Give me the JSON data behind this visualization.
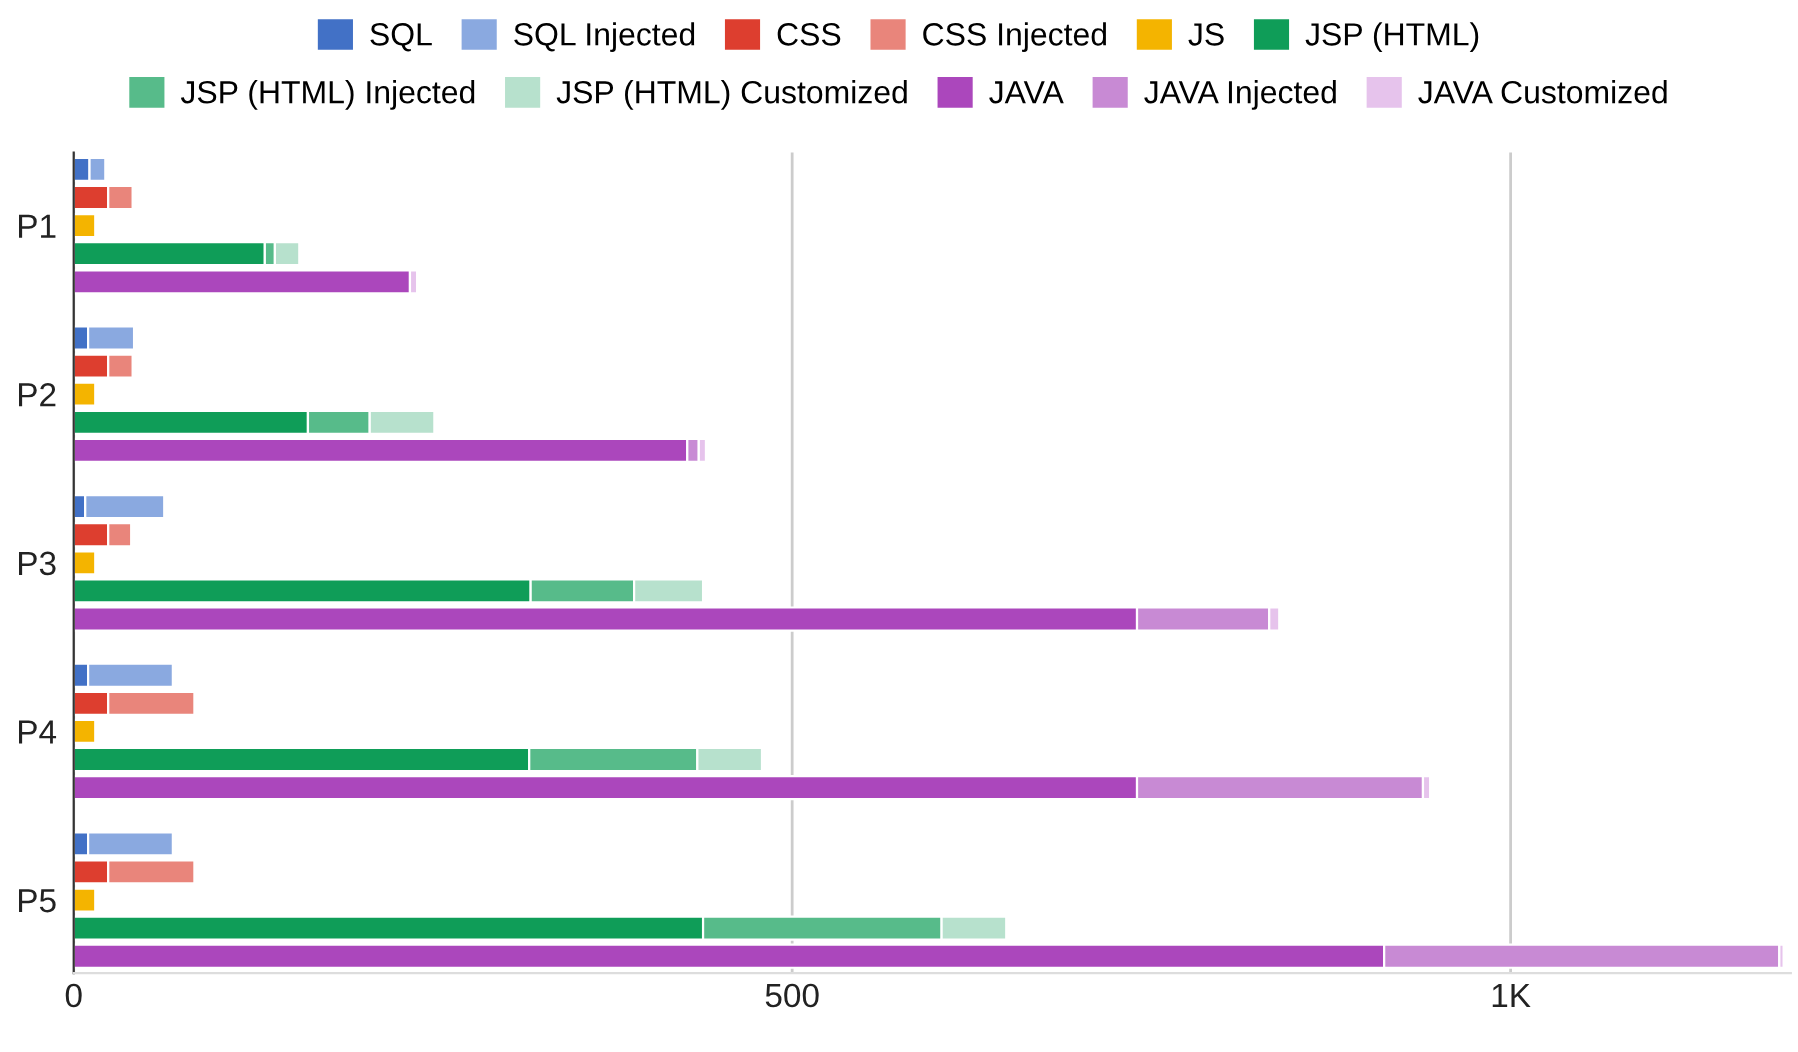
{
  "chart_data": {
    "type": "bar",
    "orientation": "horizontal",
    "stacked": true,
    "categories": [
      null,
      null,
      "P1",
      null,
      null,
      null,
      null,
      null,
      "P2",
      null,
      null,
      null,
      null,
      null,
      "P3",
      null,
      null,
      null,
      null,
      null,
      "P4",
      null,
      null,
      null,
      null,
      null,
      "P5",
      null,
      null
    ],
    "series": [
      {
        "name": "SQL",
        "color": "#4271c6",
        "values": [
          11,
          null,
          null,
          null,
          null,
          null,
          10,
          null,
          null,
          null,
          null,
          null,
          8,
          null,
          null,
          null,
          null,
          null,
          10,
          null,
          null,
          null,
          null,
          null,
          10,
          null,
          null,
          null,
          null
        ]
      },
      {
        "name": "SQL Injected",
        "color": "#8aa9e0",
        "values": [
          11,
          null,
          null,
          null,
          null,
          null,
          32,
          null,
          null,
          null,
          null,
          null,
          55,
          null,
          null,
          null,
          null,
          null,
          59,
          null,
          null,
          null,
          null,
          null,
          59,
          null,
          null,
          null,
          null
        ]
      },
      {
        "name": "CSS",
        "color": "#dd3e2f",
        "values": [
          null,
          24,
          null,
          null,
          null,
          null,
          null,
          24,
          null,
          null,
          null,
          null,
          null,
          24,
          null,
          null,
          null,
          null,
          null,
          24,
          null,
          null,
          null,
          null,
          null,
          24,
          null,
          null,
          null
        ]
      },
      {
        "name": "CSS Injected",
        "color": "#e9857b",
        "values": [
          null,
          17,
          null,
          null,
          null,
          null,
          null,
          17,
          null,
          null,
          null,
          null,
          null,
          16,
          null,
          null,
          null,
          null,
          null,
          60,
          null,
          null,
          null,
          null,
          null,
          60,
          null,
          null,
          null
        ]
      },
      {
        "name": "JS",
        "color": "#f4b400",
        "values": [
          null,
          null,
          15,
          null,
          null,
          null,
          null,
          null,
          15,
          null,
          null,
          null,
          null,
          null,
          15,
          null,
          null,
          null,
          null,
          null,
          15,
          null,
          null,
          null,
          null,
          null,
          15,
          null,
          null
        ]
      },
      {
        "name": "JSP (HTML)",
        "color": "#0f9d58",
        "values": [
          null,
          null,
          null,
          133,
          null,
          null,
          null,
          null,
          null,
          163,
          null,
          null,
          null,
          null,
          null,
          318,
          null,
          null,
          null,
          null,
          null,
          317,
          null,
          null,
          null,
          null,
          null,
          438,
          null
        ]
      },
      {
        "name": "JSP (HTML) Injected",
        "color": "#57bb8a",
        "values": [
          null,
          null,
          null,
          7,
          null,
          null,
          null,
          null,
          null,
          43,
          null,
          null,
          null,
          null,
          null,
          72,
          null,
          null,
          null,
          null,
          null,
          117,
          null,
          null,
          null,
          null,
          null,
          166,
          null
        ]
      },
      {
        "name": "JSP (HTML) Customized",
        "color": "#b7e1cd",
        "values": [
          null,
          null,
          null,
          17,
          null,
          null,
          null,
          null,
          null,
          45,
          null,
          null,
          null,
          null,
          null,
          48,
          null,
          null,
          null,
          null,
          null,
          45,
          null,
          null,
          null,
          null,
          null,
          45,
          null
        ]
      },
      {
        "name": "JAVA",
        "color": "#ab47bc",
        "values": [
          null,
          null,
          null,
          null,
          234,
          null,
          null,
          null,
          null,
          null,
          427,
          null,
          null,
          null,
          null,
          null,
          740,
          null,
          null,
          null,
          null,
          null,
          740,
          null,
          null,
          null,
          null,
          null,
          912
        ]
      },
      {
        "name": "JAVA Injected",
        "color": "#c88ad4",
        "values": [
          null,
          null,
          null,
          null,
          null,
          null,
          null,
          null,
          null,
          null,
          8,
          null,
          null,
          null,
          null,
          null,
          92,
          null,
          null,
          null,
          null,
          null,
          199,
          null,
          null,
          null,
          null,
          null,
          275
        ]
      },
      {
        "name": "JAVA Customized",
        "color": "#e6c3ec",
        "values": [
          null,
          null,
          null,
          null,
          5,
          null,
          null,
          null,
          null,
          null,
          5,
          null,
          null,
          null,
          null,
          null,
          7,
          null,
          null,
          null,
          null,
          null,
          5,
          null,
          null,
          null,
          null,
          null,
          3
        ]
      }
    ],
    "xlim": [
      0,
      1195
    ],
    "xticks": [
      0,
      500,
      {
        "value": 1000,
        "label": "1K"
      }
    ],
    "grid": "x",
    "legend": "top"
  }
}
